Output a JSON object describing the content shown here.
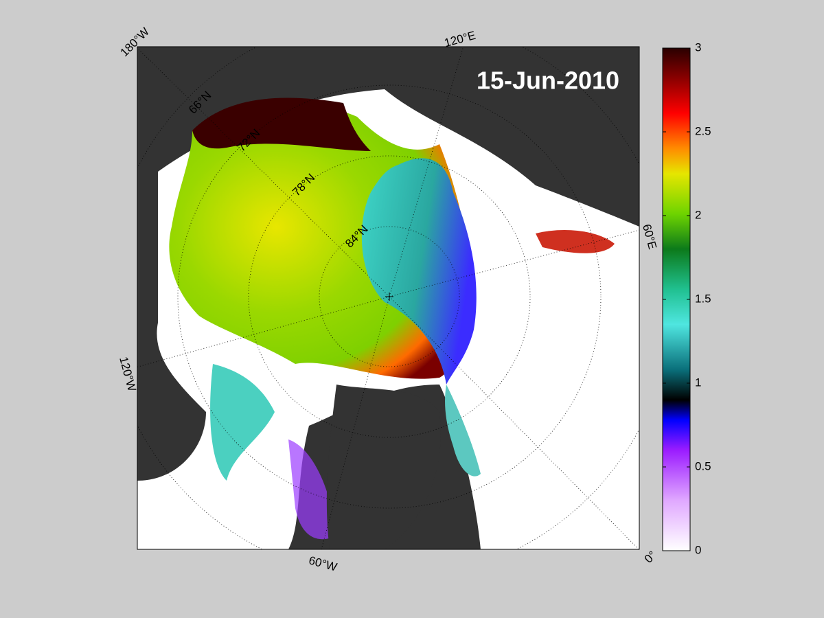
{
  "map": {
    "title": "15-Jun-2010",
    "longitude_labels": [
      "180°W",
      "120°E",
      "60°E",
      "0°",
      "60°W",
      "120°W"
    ],
    "latitude_labels": [
      "66°N",
      "72°N",
      "78°N",
      "84°N"
    ],
    "colorbar": {
      "lim": [
        0,
        3
      ],
      "ticks": [
        0,
        0.5,
        1,
        1.5,
        2,
        2.5,
        3
      ]
    }
  }
}
